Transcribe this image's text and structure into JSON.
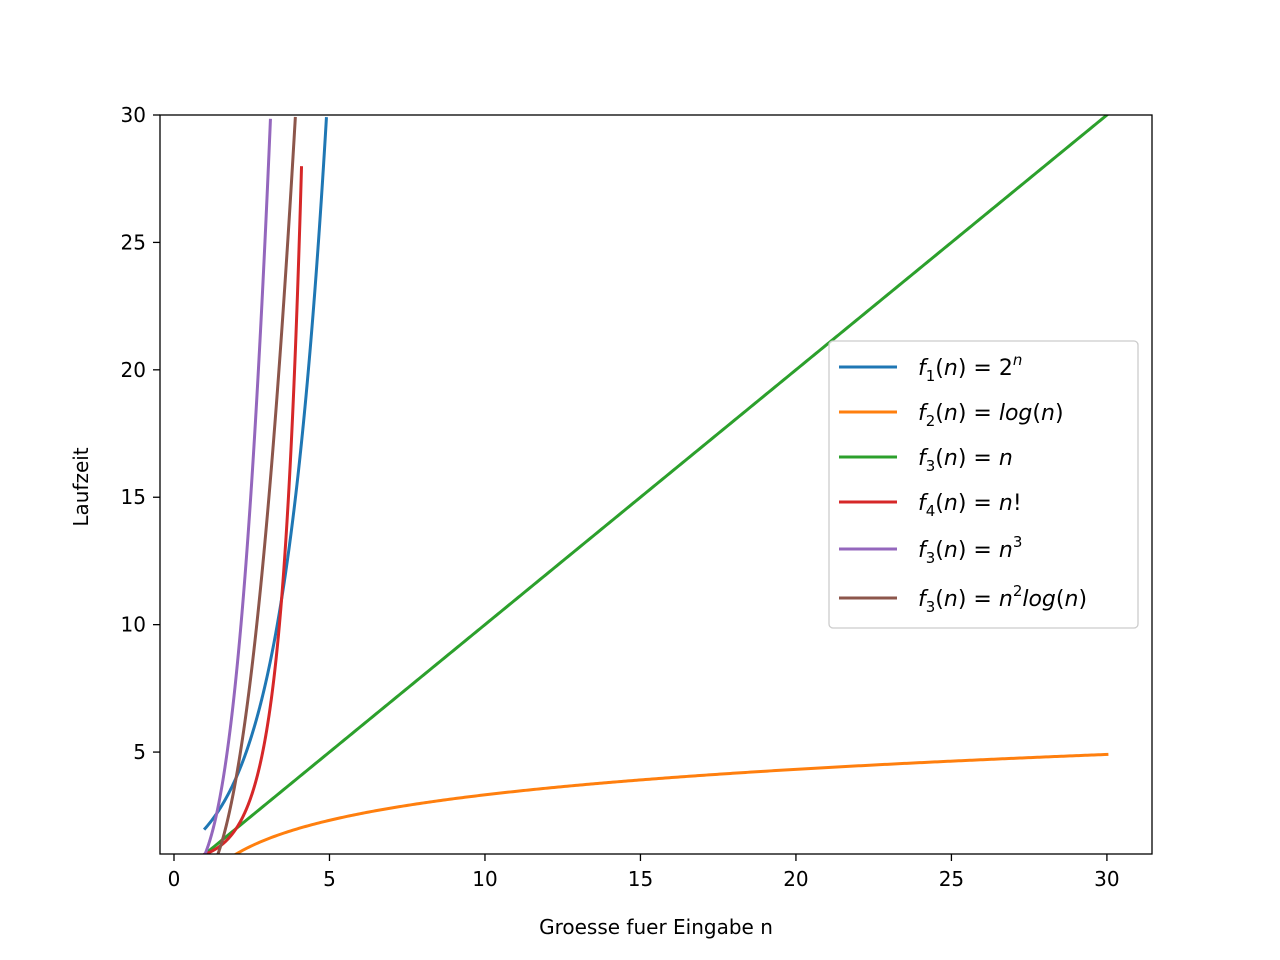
{
  "chart_data": {
    "type": "line",
    "xlabel": "Groesse fuer Eingabe n",
    "ylabel": "Laufzeit",
    "xlim": [
      -0.45,
      31.45
    ],
    "ylim": [
      1,
      30
    ],
    "xticks": [
      0,
      5,
      10,
      15,
      20,
      25,
      30
    ],
    "yticks": [
      5,
      10,
      15,
      20,
      25,
      30
    ],
    "grid": false,
    "legend_position": "center-right",
    "series": [
      {
        "name": "f_1(n) = 2^n",
        "formula": "2^n",
        "color": "#1f77b4",
        "x": [
          1,
          1.5,
          2,
          2.5,
          3,
          3.5,
          4,
          4.5,
          4.9
        ],
        "y": [
          2,
          2.83,
          4,
          5.66,
          8,
          11.31,
          16,
          22.63,
          29.86
        ]
      },
      {
        "name": "f_2(n) = log(n)",
        "formula": "log2(n)",
        "color": "#ff7f0e",
        "x": [
          2,
          3,
          4,
          6,
          8,
          10,
          15,
          20,
          25,
          30
        ],
        "y": [
          1,
          1.58,
          2,
          2.58,
          3,
          3.32,
          3.91,
          4.32,
          4.64,
          4.91
        ]
      },
      {
        "name": "f_3(n) = n",
        "formula": "n",
        "color": "#2ca02c",
        "x": [
          1,
          10,
          20,
          30
        ],
        "y": [
          1,
          10,
          20,
          30
        ]
      },
      {
        "name": "f_4(n) = n!",
        "formula": "gamma(n+1)",
        "color": "#d62728",
        "x": [
          1,
          1.5,
          2,
          2.5,
          3,
          3.5,
          4,
          4.1
        ],
        "y": [
          1,
          1.33,
          2,
          3.32,
          6,
          11.63,
          24,
          29.9
        ]
      },
      {
        "name": "f_3(n) = n^3",
        "formula": "n^3",
        "color": "#9467bd",
        "x": [
          1,
          1.5,
          2,
          2.5,
          3,
          3.1
        ],
        "y": [
          1,
          3.38,
          8,
          15.63,
          27,
          29.79
        ]
      },
      {
        "name": "f_3(n) = n^2log(n)",
        "formula": "n^2*log2(n)",
        "color": "#8c564b",
        "x": [
          1.25,
          1.5,
          2,
          2.5,
          3,
          3.5,
          3.9
        ],
        "y": [
          0.5,
          1.32,
          4,
          8.26,
          14.26,
          22.15,
          29.9
        ]
      }
    ]
  }
}
